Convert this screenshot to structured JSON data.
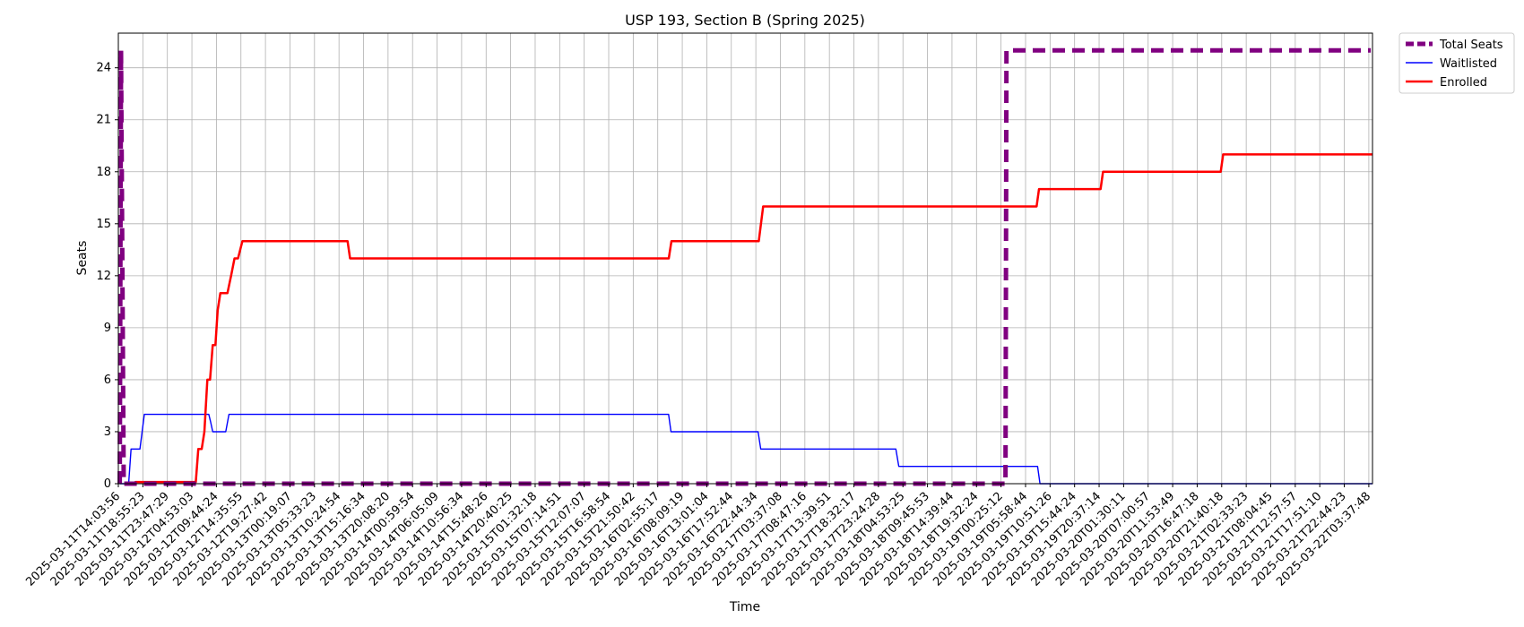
{
  "chart_data": {
    "type": "line",
    "title": "USP 193, Section B (Spring 2025)",
    "xlabel": "Time",
    "ylabel": "Seats",
    "ylim": [
      0,
      26
    ],
    "yticks": [
      0,
      3,
      6,
      9,
      12,
      15,
      18,
      21,
      24
    ],
    "grid": true,
    "legend_placement": "outside-top-right",
    "x_tick_labels": [
      "2025-03-11T14:03:56",
      "2025-03-11T18:55:23",
      "2025-03-11T23:47:29",
      "2025-03-12T04:53:03",
      "2025-03-12T09:44:24",
      "2025-03-12T14:35:55",
      "2025-03-12T19:27:42",
      "2025-03-13T00:19:07",
      "2025-03-13T05:33:23",
      "2025-03-13T10:24:54",
      "2025-03-13T15:16:34",
      "2025-03-13T20:08:20",
      "2025-03-14T00:59:54",
      "2025-03-14T06:05:09",
      "2025-03-14T10:56:34",
      "2025-03-14T15:48:26",
      "2025-03-14T20:40:25",
      "2025-03-15T01:32:18",
      "2025-03-15T07:14:51",
      "2025-03-15T12:07:07",
      "2025-03-15T16:58:54",
      "2025-03-15T21:50:42",
      "2025-03-16T02:55:17",
      "2025-03-16T08:09:19",
      "2025-03-16T13:01:04",
      "2025-03-16T17:52:44",
      "2025-03-16T22:44:34",
      "2025-03-17T03:37:08",
      "2025-03-17T08:47:16",
      "2025-03-17T13:39:51",
      "2025-03-17T18:32:17",
      "2025-03-17T23:24:28",
      "2025-03-18T04:53:25",
      "2025-03-18T09:45:53",
      "2025-03-18T14:39:44",
      "2025-03-18T19:32:24",
      "2025-03-19T00:25:12",
      "2025-03-19T05:58:44",
      "2025-03-19T10:51:26",
      "2025-03-19T15:44:24",
      "2025-03-19T20:37:14",
      "2025-03-20T01:30:11",
      "2025-03-20T07:00:57",
      "2025-03-20T11:53:49",
      "2025-03-20T16:47:18",
      "2025-03-20T21:40:18",
      "2025-03-21T02:33:23",
      "2025-03-21T08:04:45",
      "2025-03-21T12:57:57",
      "2025-03-21T17:51:10",
      "2025-03-21T22:44:23",
      "2025-03-22T03:37:48"
    ],
    "x_range": [
      0,
      51.15
    ],
    "series": [
      {
        "name": "Total Seats",
        "color": "#800080",
        "style": "dashed",
        "points": [
          [
            0.06,
            0
          ],
          [
            0.11,
            25
          ],
          [
            0.22,
            0
          ],
          [
            36.18,
            0
          ],
          [
            36.22,
            25
          ],
          [
            51.08,
            25
          ]
        ]
      },
      {
        "name": "Waitlisted",
        "color": "#0000ff",
        "style": "solid",
        "points": [
          [
            0.06,
            0
          ],
          [
            0.42,
            0
          ],
          [
            0.52,
            2
          ],
          [
            0.88,
            2
          ],
          [
            1.06,
            4
          ],
          [
            3.69,
            4
          ],
          [
            3.76,
            3.6
          ],
          [
            3.85,
            3
          ],
          [
            4.38,
            3
          ],
          [
            4.51,
            4
          ],
          [
            22.44,
            4
          ],
          [
            22.54,
            3
          ],
          [
            26.09,
            3
          ],
          [
            26.2,
            2
          ],
          [
            31.71,
            2
          ],
          [
            31.83,
            1
          ],
          [
            37.49,
            1
          ],
          [
            37.59,
            0
          ],
          [
            51.15,
            0
          ]
        ]
      },
      {
        "name": "Enrolled",
        "color": "#ff0000",
        "style": "solid",
        "points": [
          [
            0.6,
            0
          ],
          [
            0.7,
            0.1
          ],
          [
            3.16,
            0.1
          ],
          [
            3.26,
            2
          ],
          [
            3.4,
            2
          ],
          [
            3.51,
            3
          ],
          [
            3.63,
            6
          ],
          [
            3.74,
            6
          ],
          [
            3.85,
            8
          ],
          [
            3.96,
            8
          ],
          [
            4.05,
            10
          ],
          [
            4.16,
            11
          ],
          [
            4.45,
            11
          ],
          [
            4.6,
            12
          ],
          [
            4.74,
            13
          ],
          [
            4.88,
            13
          ],
          [
            5.06,
            14
          ],
          [
            9.35,
            14
          ],
          [
            9.45,
            13
          ],
          [
            22.45,
            13
          ],
          [
            22.56,
            14
          ],
          [
            26.12,
            14
          ],
          [
            26.3,
            16
          ],
          [
            37.45,
            16
          ],
          [
            37.55,
            17
          ],
          [
            40.06,
            17
          ],
          [
            40.16,
            18
          ],
          [
            44.96,
            18
          ],
          [
            45.06,
            19
          ],
          [
            51.15,
            19
          ]
        ]
      }
    ]
  }
}
